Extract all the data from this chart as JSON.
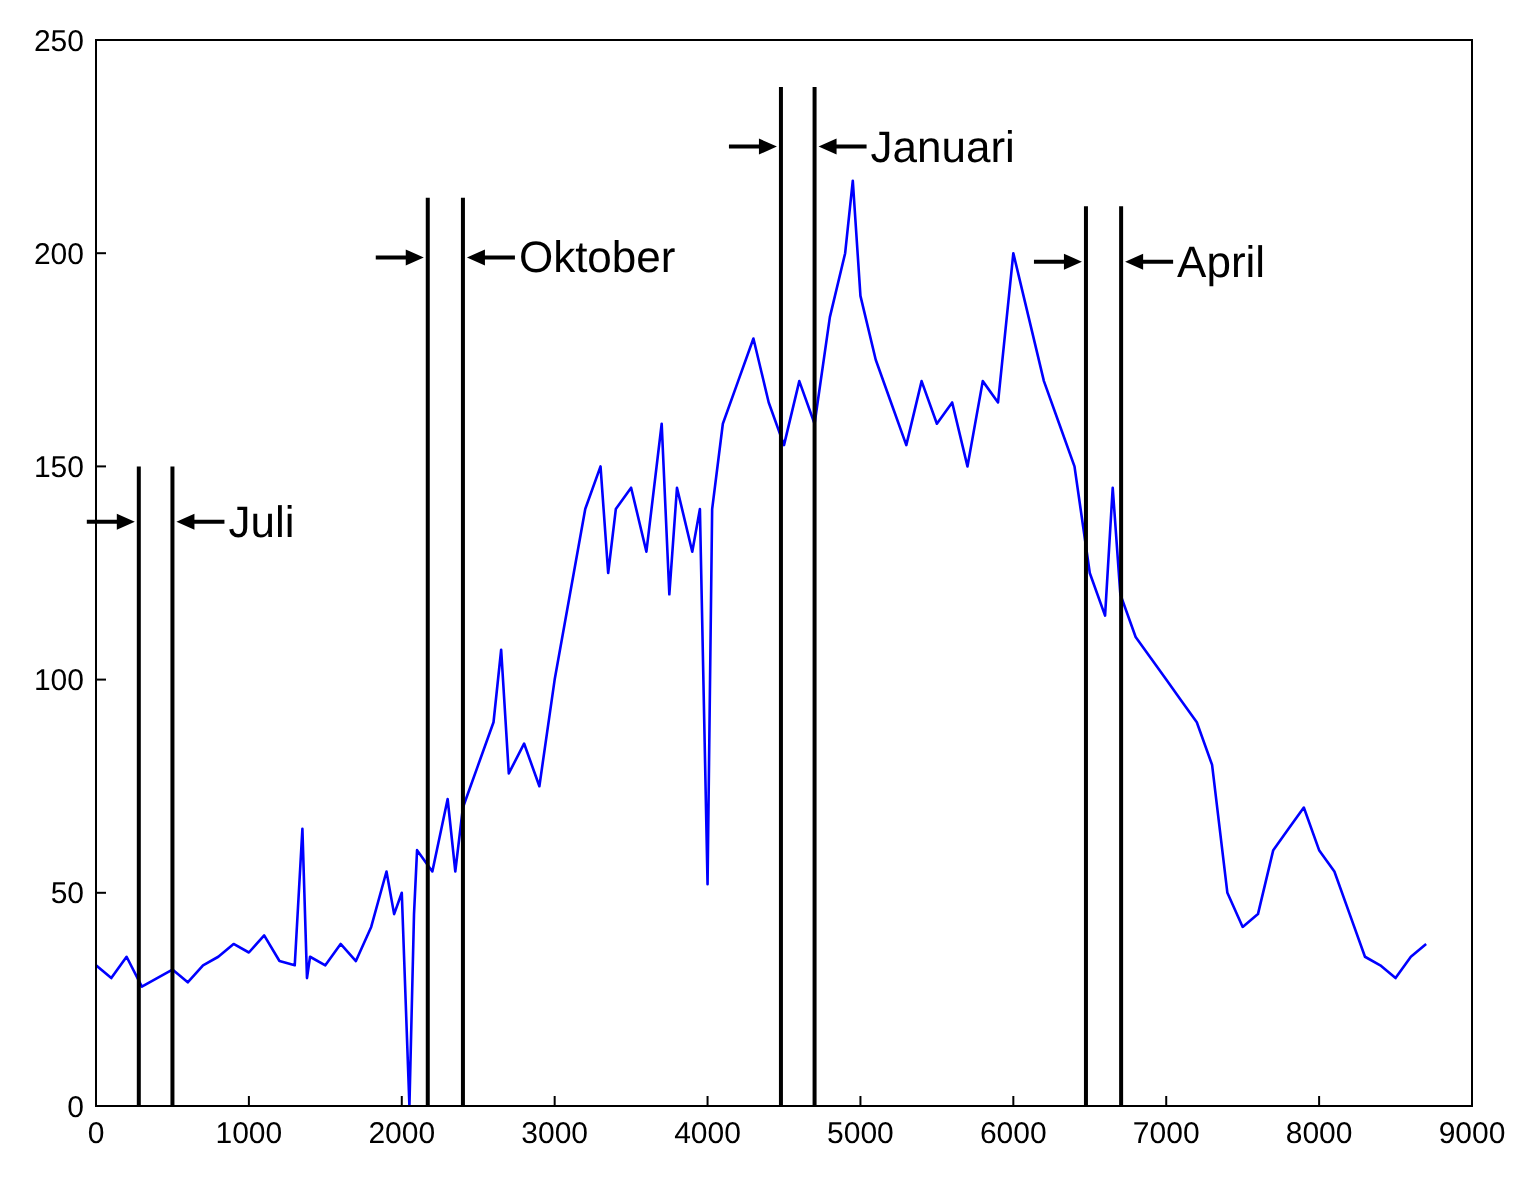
{
  "chart_data": {
    "type": "line",
    "marker": "none",
    "x": [
      0,
      100,
      200,
      300,
      400,
      500,
      600,
      700,
      800,
      900,
      1000,
      1100,
      1200,
      1300,
      1350,
      1380,
      1400,
      1500,
      1600,
      1700,
      1800,
      1900,
      1950,
      2000,
      2050,
      2080,
      2100,
      2200,
      2300,
      2350,
      2400,
      2500,
      2600,
      2650,
      2700,
      2800,
      2900,
      3000,
      3100,
      3200,
      3300,
      3350,
      3400,
      3500,
      3600,
      3700,
      3750,
      3800,
      3900,
      3950,
      4000,
      4030,
      4100,
      4200,
      4300,
      4400,
      4500,
      4600,
      4700,
      4800,
      4900,
      4950,
      5000,
      5100,
      5200,
      5300,
      5400,
      5500,
      5600,
      5700,
      5800,
      5900,
      6000,
      6100,
      6200,
      6300,
      6400,
      6500,
      6600,
      6650,
      6700,
      6800,
      6900,
      7000,
      7100,
      7200,
      7300,
      7400,
      7500,
      7600,
      7700,
      7800,
      7900,
      8000,
      8100,
      8200,
      8300,
      8400,
      8500,
      8600,
      8700
    ],
    "series": [
      {
        "color": "#0000ff",
        "values": [
          33,
          30,
          35,
          28,
          30,
          32,
          29,
          33,
          35,
          38,
          36,
          40,
          34,
          33,
          65,
          30,
          35,
          33,
          38,
          34,
          42,
          55,
          45,
          50,
          0,
          45,
          60,
          55,
          72,
          55,
          70,
          80,
          90,
          107,
          78,
          85,
          75,
          100,
          120,
          140,
          150,
          125,
          140,
          145,
          130,
          160,
          120,
          145,
          130,
          140,
          52,
          140,
          160,
          170,
          180,
          165,
          155,
          170,
          160,
          185,
          200,
          217,
          190,
          175,
          165,
          155,
          170,
          160,
          165,
          150,
          170,
          165,
          200,
          185,
          170,
          160,
          150,
          125,
          115,
          145,
          120,
          110,
          105,
          100,
          95,
          90,
          80,
          50,
          42,
          45,
          60,
          65,
          70,
          60,
          55,
          45,
          35,
          33,
          30,
          35,
          38
        ]
      },
      {
        "type": "line",
        "color": "#000000",
        "x": [
          280,
          280
        ],
        "values": [
          0,
          150
        ]
      },
      {
        "type": "line",
        "color": "#000000",
        "x": [
          500,
          500
        ],
        "values": [
          0,
          150
        ]
      },
      {
        "type": "line",
        "color": "#000000",
        "x": [
          2170,
          2170
        ],
        "values": [
          0,
          213
        ]
      },
      {
        "type": "line",
        "color": "#000000",
        "x": [
          2400,
          2400
        ],
        "values": [
          0,
          213
        ]
      },
      {
        "type": "line",
        "color": "#000000",
        "x": [
          4480,
          4480
        ],
        "values": [
          0,
          239
        ]
      },
      {
        "type": "line",
        "color": "#000000",
        "x": [
          4700,
          4700
        ],
        "values": [
          0,
          239
        ]
      },
      {
        "type": "line",
        "color": "#000000",
        "x": [
          6475,
          6475
        ],
        "values": [
          0,
          211
        ]
      },
      {
        "type": "line",
        "color": "#000000",
        "x": [
          6705,
          6705
        ],
        "values": [
          0,
          211
        ]
      }
    ],
    "annotations": [
      {
        "text": "Juli",
        "x": 500,
        "y": 137
      },
      {
        "text": "Oktober",
        "x": 2400,
        "y": 199
      },
      {
        "text": "Januari",
        "x": 4700,
        "y": 225
      },
      {
        "text": "April",
        "x": 6705,
        "y": 198
      }
    ],
    "xlim": [
      0,
      9000
    ],
    "xticks": [
      0,
      1000,
      2000,
      3000,
      4000,
      5000,
      6000,
      7000,
      8000,
      9000
    ],
    "ylim": [
      0,
      250
    ],
    "yticks": [
      0,
      50,
      100,
      150,
      200,
      250
    ]
  }
}
